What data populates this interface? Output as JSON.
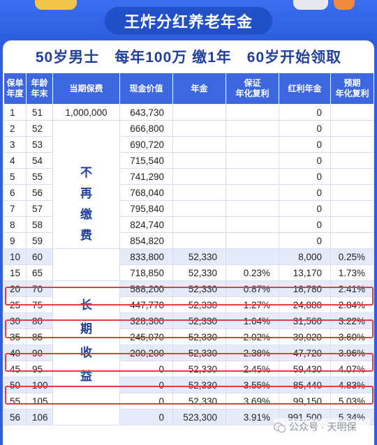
{
  "title": "王炸分红养老年金",
  "subtitle": "50岁男士　每年100万 缴1年　60岁开始领取",
  "headers": {
    "policy_year": [
      "保单",
      "年度"
    ],
    "age_end": [
      "年龄",
      "年末"
    ],
    "premium": "当期保费",
    "cash_value": "现金价值",
    "annuity": "年金",
    "guaranteed_rate": [
      "保证",
      "年化复利"
    ],
    "bonus_annuity": "红利年金",
    "expected_rate": [
      "预期",
      "年化复利"
    ]
  },
  "first_premium": "1,000,000",
  "no_more_pay": [
    "不",
    "再",
    "缴",
    "费"
  ],
  "long_term": [
    "长",
    "期",
    "收",
    "益"
  ],
  "rows": [
    {
      "year": "1",
      "age": "51",
      "cash": "643,730",
      "annuity": "",
      "grate": "",
      "bonus": "0",
      "erate": ""
    },
    {
      "year": "2",
      "age": "52",
      "cash": "666,800",
      "annuity": "",
      "grate": "",
      "bonus": "0",
      "erate": ""
    },
    {
      "year": "3",
      "age": "53",
      "cash": "690,720",
      "annuity": "",
      "grate": "",
      "bonus": "0",
      "erate": ""
    },
    {
      "year": "4",
      "age": "54",
      "cash": "715,540",
      "annuity": "",
      "grate": "",
      "bonus": "0",
      "erate": ""
    },
    {
      "year": "5",
      "age": "55",
      "cash": "741,290",
      "annuity": "",
      "grate": "",
      "bonus": "0",
      "erate": ""
    },
    {
      "year": "6",
      "age": "56",
      "cash": "768,040",
      "annuity": "",
      "grate": "",
      "bonus": "0",
      "erate": ""
    },
    {
      "year": "7",
      "age": "57",
      "cash": "795,840",
      "annuity": "",
      "grate": "",
      "bonus": "0",
      "erate": ""
    },
    {
      "year": "8",
      "age": "58",
      "cash": "824,740",
      "annuity": "",
      "grate": "",
      "bonus": "0",
      "erate": ""
    },
    {
      "year": "9",
      "age": "59",
      "cash": "854,820",
      "annuity": "",
      "grate": "",
      "bonus": "0",
      "erate": ""
    },
    {
      "year": "10",
      "age": "60",
      "cash": "833,800",
      "annuity": "52,330",
      "grate": "",
      "bonus": "8,000",
      "erate": "0.25%"
    },
    {
      "year": "15",
      "age": "65",
      "cash": "718,850",
      "annuity": "52,330",
      "grate": "0.23%",
      "bonus": "13,170",
      "erate": "1.73%"
    },
    {
      "year": "20",
      "age": "70",
      "cash": "588,200",
      "annuity": "52,330",
      "grate": "0.87%",
      "bonus": "18,780",
      "erate": "2.41%"
    },
    {
      "year": "25",
      "age": "75",
      "cash": "447,770",
      "annuity": "52,330",
      "grate": "1.27%",
      "bonus": "24,880",
      "erate": "2.84%"
    },
    {
      "year": "30",
      "age": "80",
      "cash": "328,300",
      "annuity": "52,330",
      "grate": "1.64%",
      "bonus": "31,560",
      "erate": "3.22%"
    },
    {
      "year": "35",
      "age": "85",
      "cash": "245,070",
      "annuity": "52,330",
      "grate": "2.02%",
      "bonus": "39,020",
      "erate": "3.60%"
    },
    {
      "year": "40",
      "age": "90",
      "cash": "200,200",
      "annuity": "52,330",
      "grate": "2.38%",
      "bonus": "47,720",
      "erate": "3.96%"
    },
    {
      "year": "45",
      "age": "95",
      "cash": "0",
      "annuity": "52,330",
      "grate": "2.45%",
      "bonus": "59,430",
      "erate": "4.07%"
    },
    {
      "year": "50",
      "age": "100",
      "cash": "0",
      "annuity": "52,330",
      "grate": "3.55%",
      "bonus": "85,440",
      "erate": "4.83%"
    },
    {
      "year": "55",
      "age": "105",
      "cash": "0",
      "annuity": "52,330",
      "grate": "3.69%",
      "bonus": "99,150",
      "erate": "5.03%"
    },
    {
      "year": "56",
      "age": "106",
      "cash": "0",
      "annuity": "523,300",
      "grate": "3.91%",
      "bonus": "991,500",
      "erate": "5.34%"
    }
  ],
  "watermark": "公众号 · 天明保",
  "colors": {
    "brand_blue": "#3c67df",
    "highlight_red": "#e83a45",
    "accent_text": "#1f3f9c"
  }
}
